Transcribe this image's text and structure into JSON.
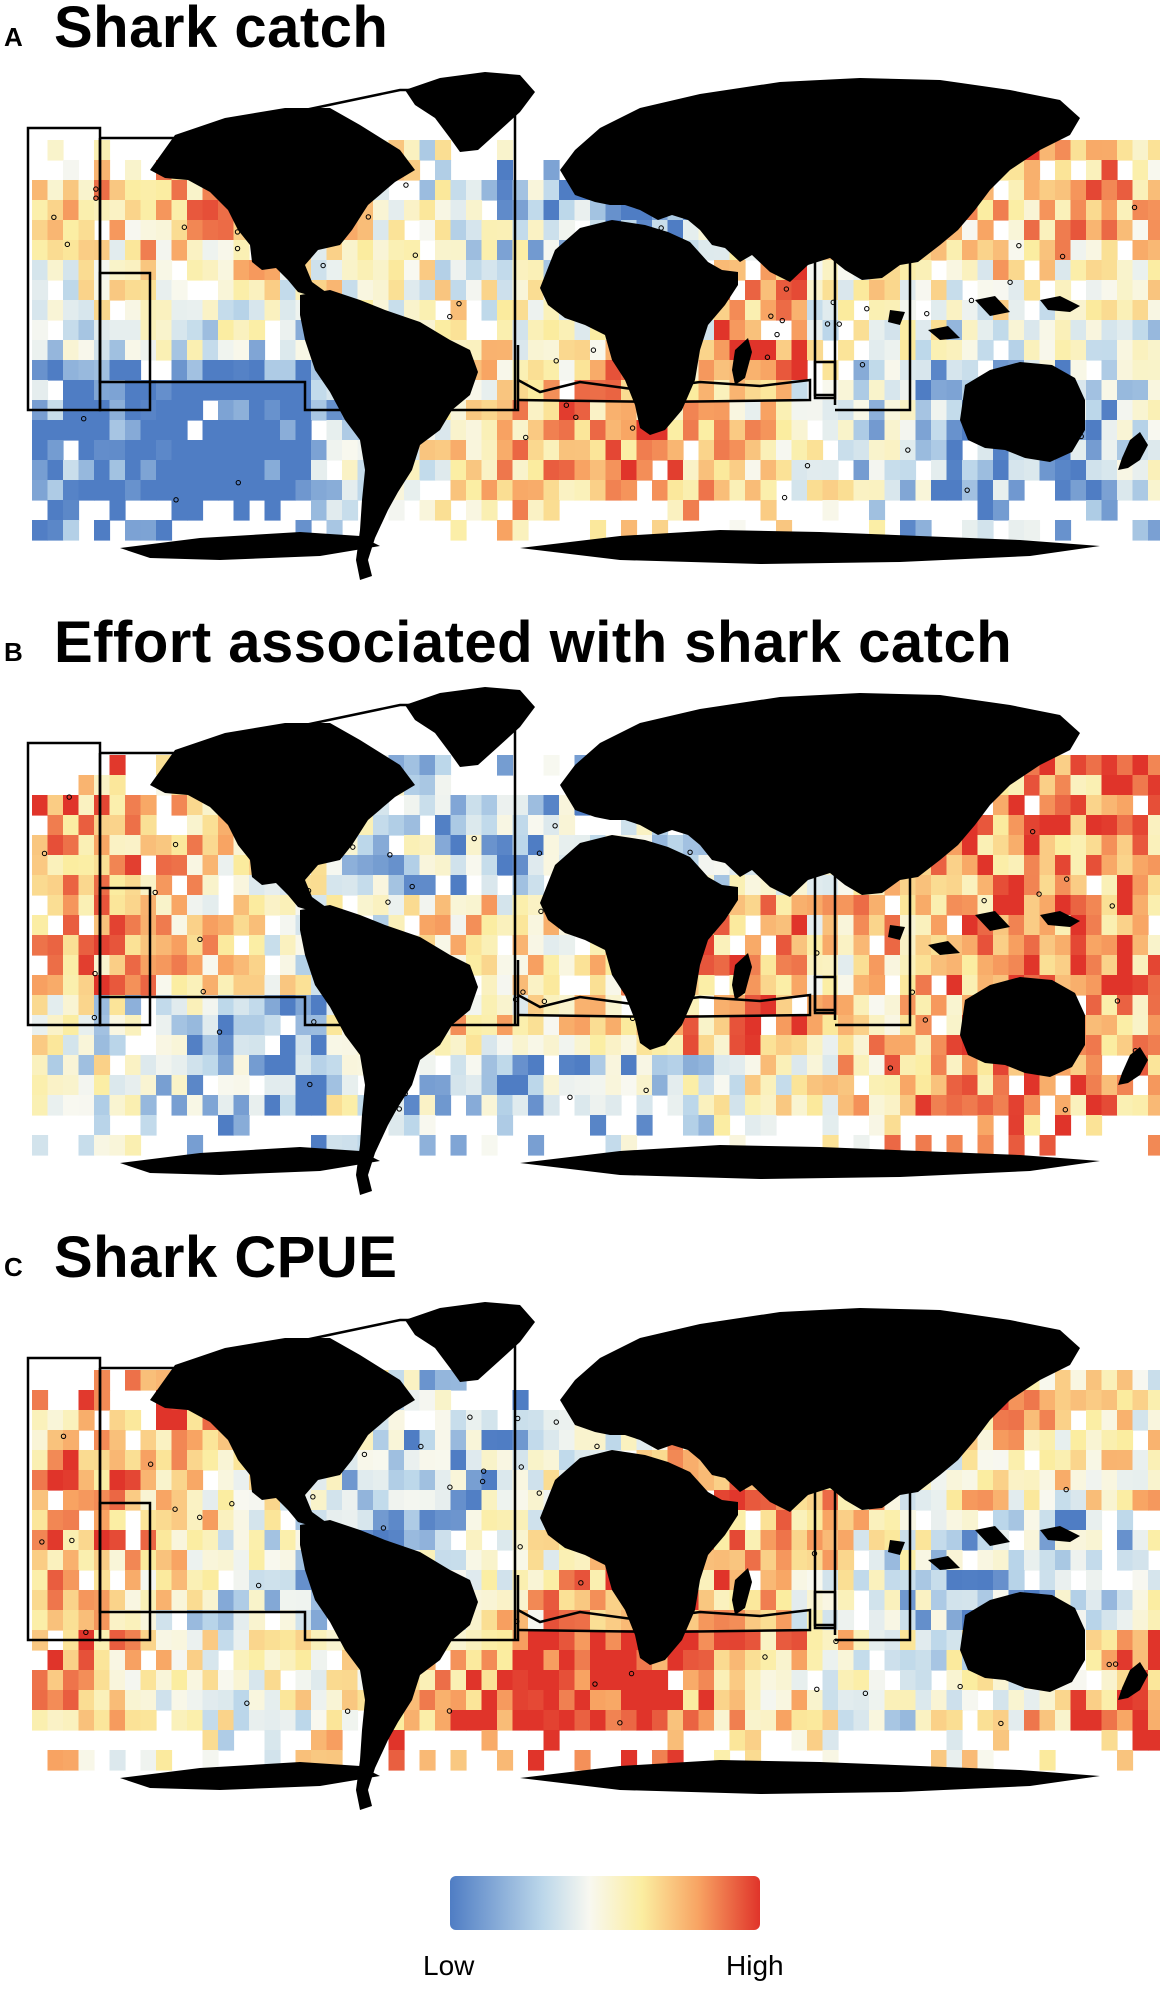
{
  "panels": [
    {
      "letter": "A",
      "title": "Shark catch",
      "variant": 0
    },
    {
      "letter": "B",
      "title": "Effort associated with shark catch",
      "variant": 1
    },
    {
      "letter": "C",
      "title": "Shark CPUE",
      "variant": 2
    }
  ],
  "legend": {
    "low_label": "Low",
    "high_label": "High",
    "colors": [
      "#4f7dc4",
      "#bcd7ea",
      "#f8f8f0",
      "#fbeda0",
      "#f8a463",
      "#e0342a"
    ]
  },
  "colors": {
    "land": "#000000",
    "region_outline": "#000000",
    "background": "#ffffff"
  }
}
